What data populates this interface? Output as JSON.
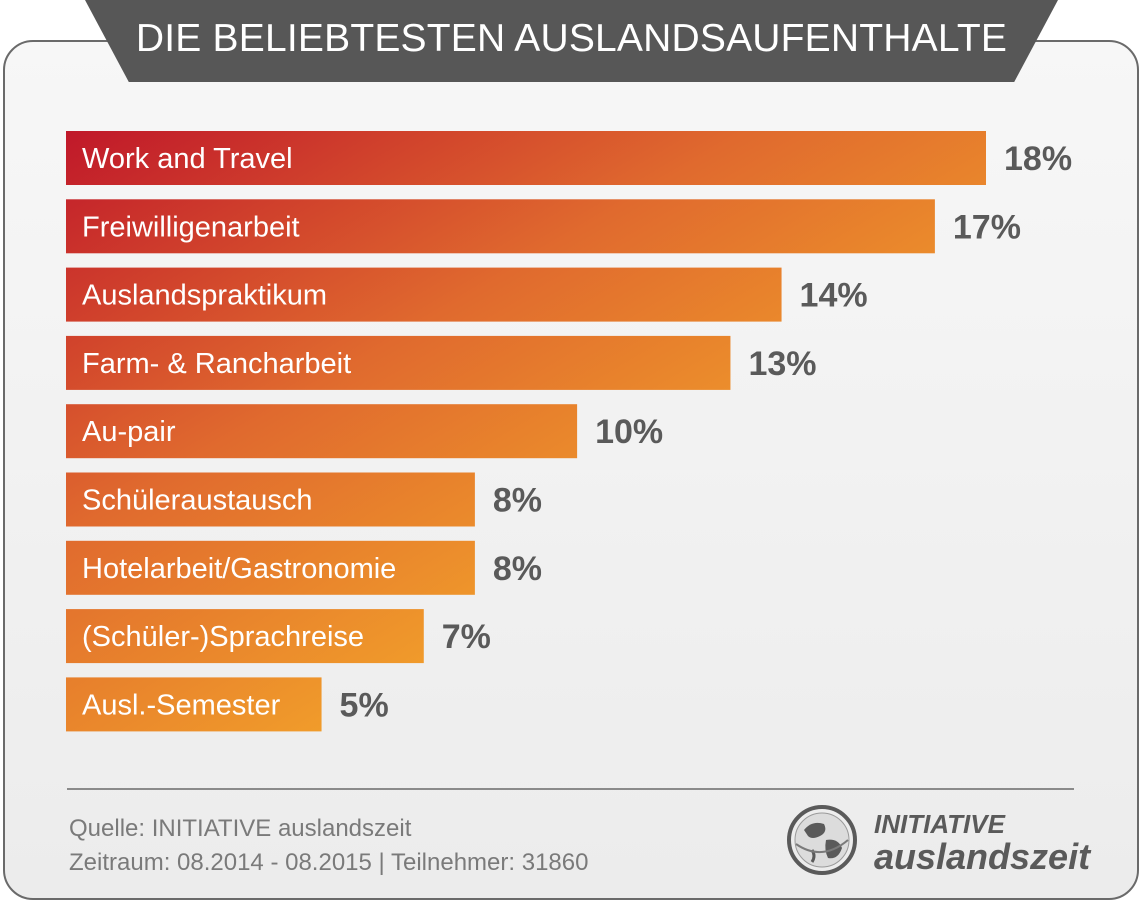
{
  "header": {
    "title": "DIE BELIEBTESTEN AUSLANDSAUFENTHALTE"
  },
  "chart_data": {
    "type": "bar",
    "orientation": "horizontal",
    "categories": [
      "Work and Travel",
      "Freiwilligenarbeit",
      "Auslandspraktikum",
      "Farm- & Rancharbeit",
      "Au-pair",
      "Schüleraustausch",
      "Hotelarbeit/Gastronomie",
      "(Schüler-)Sprachreise",
      "Ausl.-Semester"
    ],
    "values": [
      18,
      17,
      14,
      13,
      10,
      8,
      8,
      7,
      5
    ],
    "value_labels": [
      "18%",
      "17%",
      "14%",
      "13%",
      "10%",
      "8%",
      "8%",
      "7%",
      "5%"
    ],
    "unit": "%",
    "title": "DIE BELIEBTESTEN AUSLANDSAUFENTHALTE",
    "colors": {
      "start": "#c0182a",
      "end": "#f3a42a",
      "value_text": "#5a5a5a"
    }
  },
  "footer": {
    "source": "Quelle: INITIATIVE auslandszeit",
    "period": "Zeitraum: 08.2014 - 08.2015 | Teilnehmer: 31860"
  },
  "logo": {
    "line1": "INITIATIVE",
    "line2": "auslandszeit",
    "icon": "globe-icon"
  }
}
